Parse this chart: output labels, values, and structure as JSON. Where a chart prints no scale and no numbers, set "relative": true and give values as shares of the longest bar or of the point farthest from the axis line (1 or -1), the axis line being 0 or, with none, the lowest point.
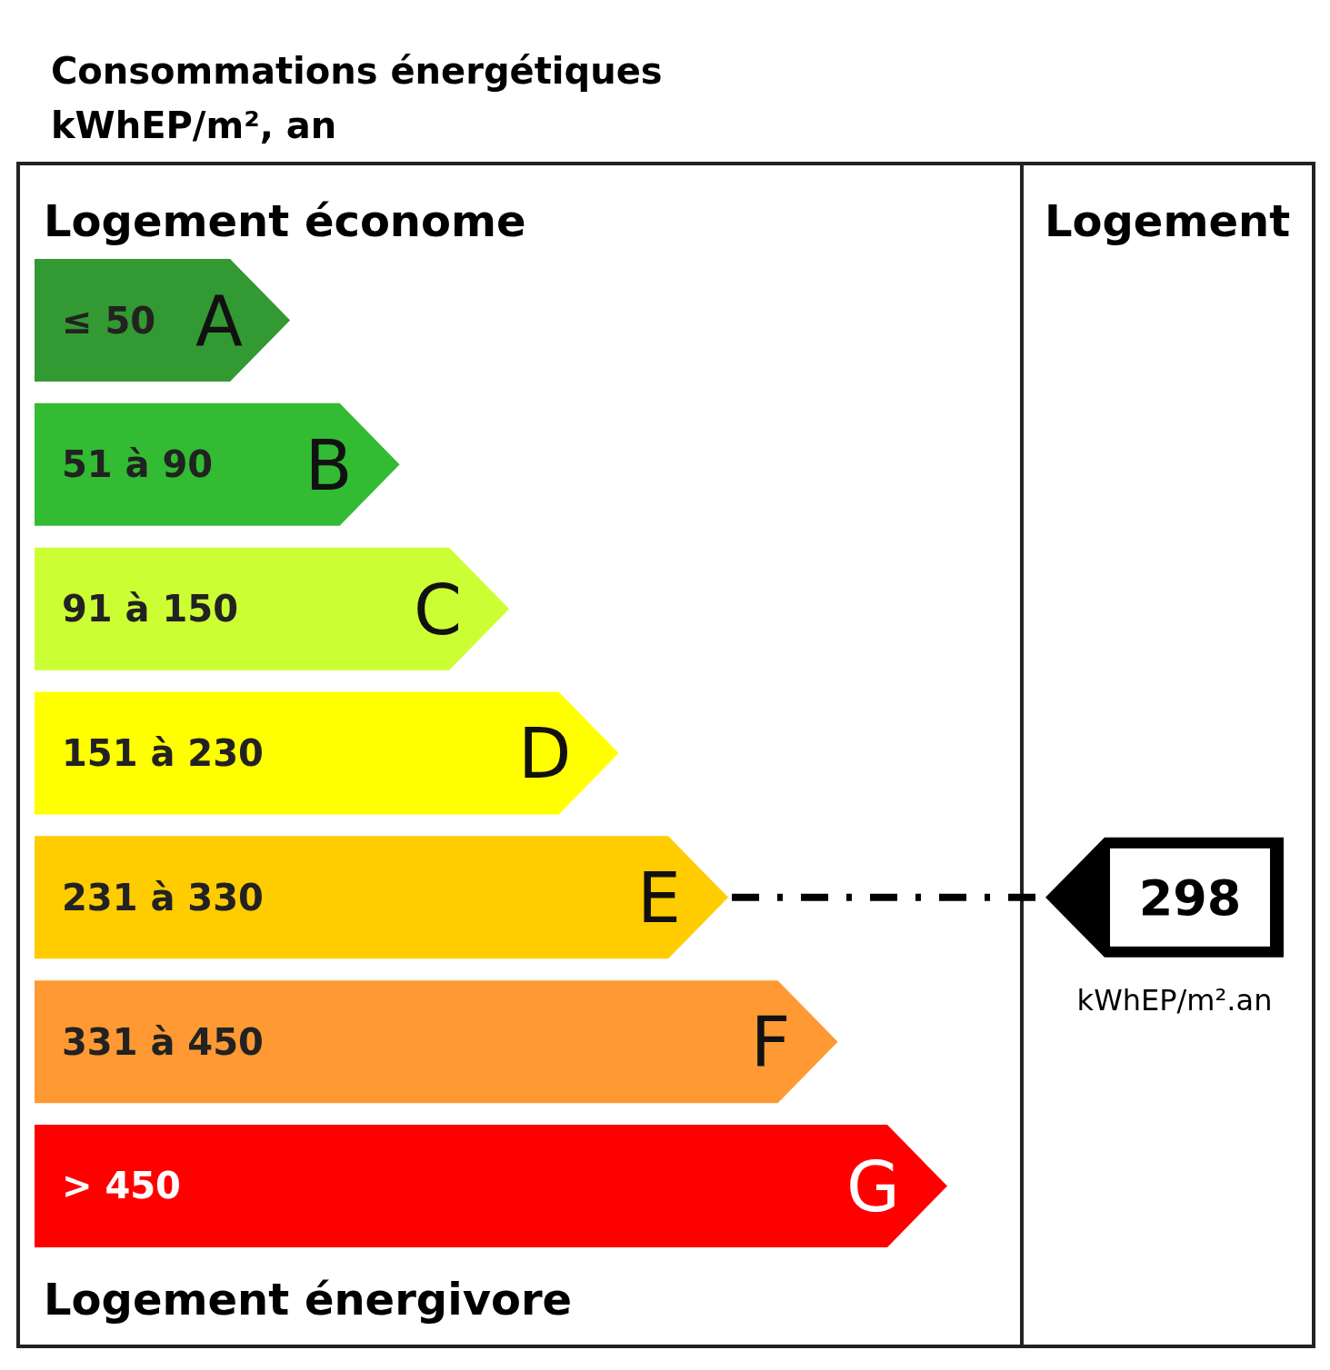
{
  "chart_data": {
    "type": "bar",
    "orientation": "horizontal",
    "relative": true,
    "title": "Consommations énergétiques",
    "subtitle": "kWhEP/m², an",
    "categories": [
      "A",
      "B",
      "C",
      "D",
      "E",
      "F",
      "G"
    ],
    "values": [
      0.28,
      0.4,
      0.52,
      0.64,
      0.76,
      0.88,
      1.0
    ],
    "colors": [
      "#339933",
      "#33bb33",
      "#ccff33",
      "#ffff00",
      "#ffcc00",
      "#ff9933",
      "#ff0000"
    ],
    "ref_lines": [
      {
        "axis": "y",
        "value": "E",
        "label": "298",
        "color": "#000000",
        "line_style": "dashed"
      }
    ],
    "annotations": [
      "≤ 50",
      "51 à 90",
      "91 à 150",
      "151 à 230",
      "231 à 330",
      "331 à 450",
      "> 450",
      "Logement économe",
      "Logement énergivore",
      "Logement",
      "kWhEP/m².an"
    ]
  }
}
